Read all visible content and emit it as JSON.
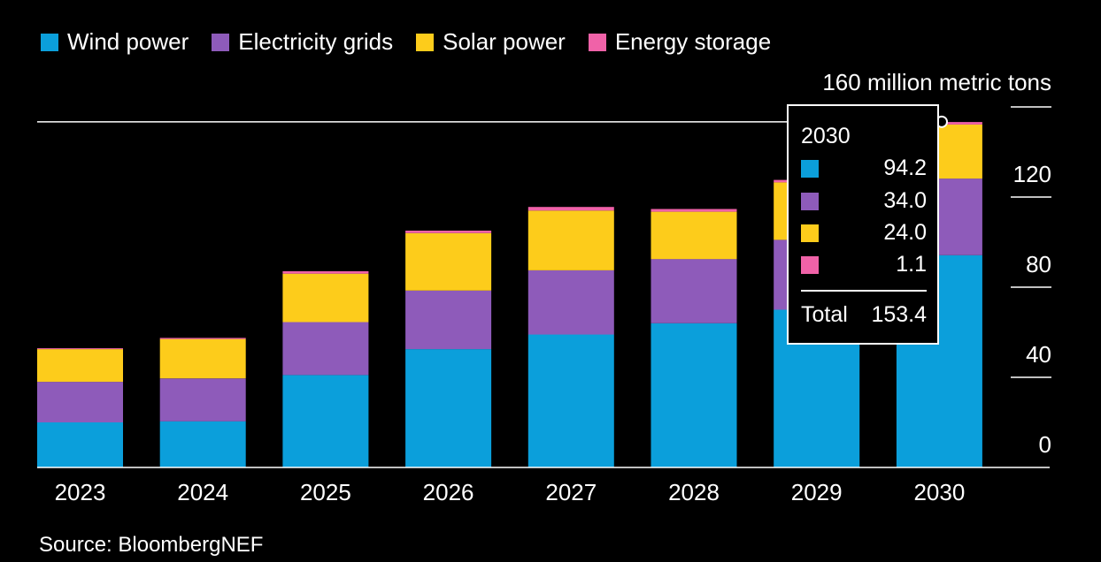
{
  "chart_data": {
    "type": "bar",
    "stacked": true,
    "title": "",
    "unit_label": "160 million metric tons",
    "categories": [
      "2023",
      "2024",
      "2025",
      "2026",
      "2027",
      "2028",
      "2029",
      "2030"
    ],
    "series": [
      {
        "name": "Wind power",
        "color": "#0b9fdb",
        "values": [
          20,
          20.5,
          41,
          52.5,
          59,
          64,
          70,
          94.2
        ]
      },
      {
        "name": "Electricity grids",
        "color": "#8e5bba",
        "values": [
          18,
          19,
          23.5,
          26,
          28.5,
          28.5,
          31,
          34.0
        ]
      },
      {
        "name": "Solar power",
        "color": "#fdcc1b",
        "values": [
          14.5,
          17.5,
          21.5,
          25.5,
          26.5,
          21,
          25.5,
          24.0
        ]
      },
      {
        "name": "Energy storage",
        "color": "#f062a8",
        "values": [
          0.4,
          0.5,
          1.1,
          1.1,
          1.6,
          1.2,
          1.1,
          1.1
        ]
      }
    ],
    "ylim": [
      0,
      160
    ],
    "yticks": [
      0,
      40,
      80,
      120
    ],
    "ytick_labels": [
      "0",
      "40",
      "80",
      "120"
    ],
    "y_axis_side": "right",
    "reference_line": {
      "value": 153.4
    },
    "legend_position": "top-left",
    "grid": false
  },
  "tooltip": {
    "year": "2030",
    "rows": [
      {
        "color": "#0b9fdb",
        "value": "94.2"
      },
      {
        "color": "#8e5bba",
        "value": "34.0"
      },
      {
        "color": "#fdcc1b",
        "value": "24.0"
      },
      {
        "color": "#f062a8",
        "value": "1.1"
      }
    ],
    "total_label": "Total",
    "total_value": "153.4"
  },
  "source": "Source: BloombergNEF"
}
